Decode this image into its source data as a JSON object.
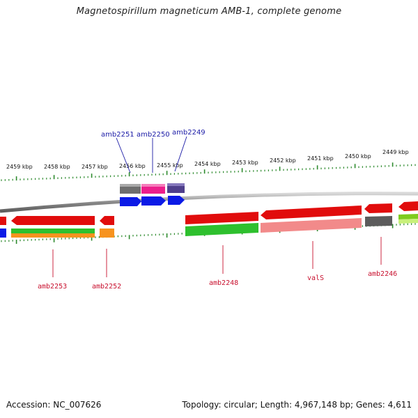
{
  "title": "Magnetospirillum magneticum AMB-1, complete genome",
  "footer": {
    "accession": "Accession: NC_007626",
    "summary": "Topology: circular; Length: 4,967,148 bp; Genes: 4,611"
  },
  "colors": {
    "tick": "#2d8a2d",
    "backbone": "#8a8a8a",
    "top_label": "#1a1aa6",
    "bottom_label": "#c8102e"
  },
  "ticks": [
    "2459 kbp",
    "2458 kbp",
    "2457 kbp",
    "2456 kbp",
    "2455 kbp",
    "2454 kbp",
    "2453 kbp",
    "2452 kbp",
    "2451 kbp",
    "2450 kbp",
    "2449 kbp"
  ],
  "top_genes": [
    "amb2251",
    "amb2250",
    "amb2249"
  ],
  "bottom_genes": [
    "amb2253",
    "amb2252",
    "amb2248",
    "valS",
    "amb2246"
  ]
}
